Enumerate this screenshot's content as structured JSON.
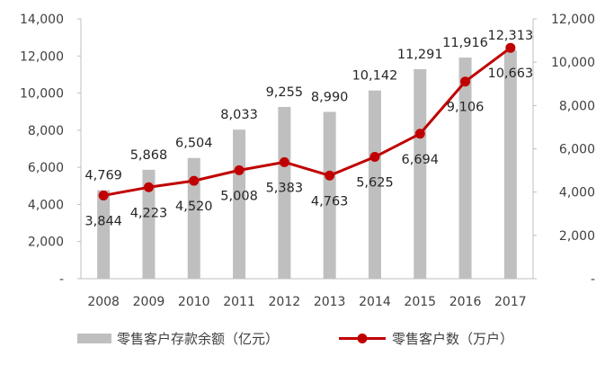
{
  "chart_data": {
    "type": "bar+line",
    "categories": [
      "2008",
      "2009",
      "2010",
      "2011",
      "2012",
      "2013",
      "2014",
      "2015",
      "2016",
      "2017"
    ],
    "series": [
      {
        "name": "零售客户存款余额（亿元）",
        "type": "bar",
        "axis": "left",
        "color": "#bfbfbf",
        "values": [
          4769,
          5868,
          6504,
          8033,
          9255,
          8990,
          10142,
          11291,
          11916,
          12313
        ],
        "labels": [
          "4,769",
          "5,868",
          "6,504",
          "8,033",
          "9,255",
          "8,990",
          "10,142",
          "11,291",
          "11,916",
          "12,313"
        ]
      },
      {
        "name": "零售客户数（万户）",
        "type": "line",
        "axis": "right",
        "color": "#c00000",
        "values": [
          3844,
          4223,
          4520,
          5008,
          5383,
          4763,
          5625,
          6694,
          9106,
          10663
        ],
        "labels": [
          "3,844",
          "4,223",
          "4,520",
          "5,008",
          "5,383",
          "4,763",
          "5,625",
          "6,694",
          "9,106",
          "10,663"
        ]
      }
    ],
    "y_left": {
      "min": 0,
      "max": 14000,
      "ticks": [
        "-",
        "2,000",
        "4,000",
        "6,000",
        "8,000",
        "10,000",
        "12,000",
        "14,000"
      ]
    },
    "y_right": {
      "min": 0,
      "max": 12000,
      "ticks": [
        "-",
        "2,000",
        "4,000",
        "6,000",
        "8,000",
        "10,000",
        "12,000"
      ]
    },
    "grid": false,
    "legend_position": "bottom"
  }
}
